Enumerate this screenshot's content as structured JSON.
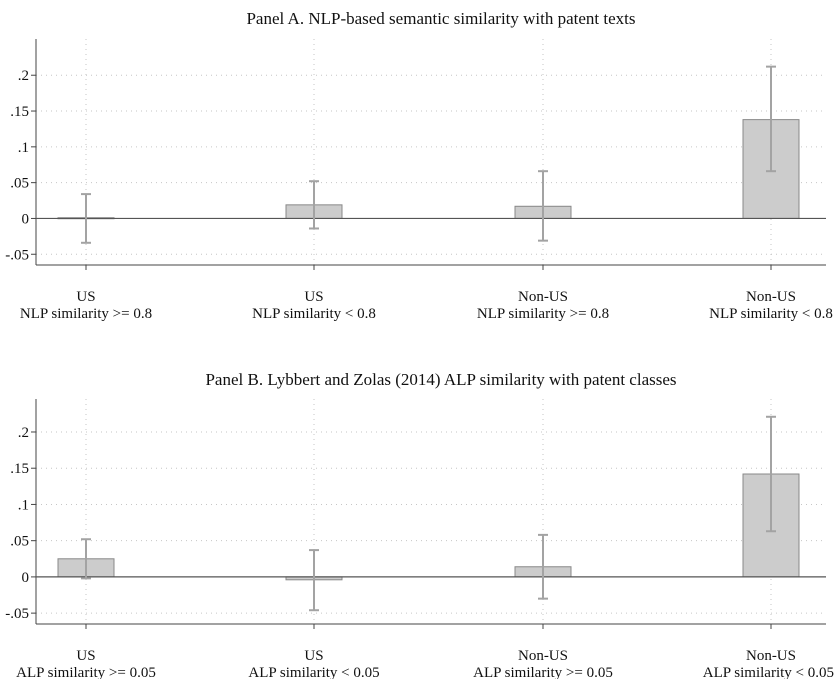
{
  "chart_data": [
    {
      "type": "bar",
      "title": "Panel A. NLP-based semantic similarity with patent texts",
      "categories": [
        [
          "US",
          "NLP similarity >= 0.8"
        ],
        [
          "US",
          "NLP similarity < 0.8"
        ],
        [
          "Non-US",
          "NLP similarity >= 0.8"
        ],
        [
          "Non-US",
          "NLP similarity < 0.8"
        ]
      ],
      "values": [
        0.001,
        0.019,
        0.017,
        0.138
      ],
      "ci_low": [
        -0.034,
        -0.014,
        -0.031,
        0.066
      ],
      "ci_high": [
        0.034,
        0.052,
        0.066,
        0.212
      ],
      "yticks": [
        -0.05,
        0,
        0.05,
        0.1,
        0.15,
        0.2
      ],
      "yticklabels": [
        "-.05",
        "0",
        ".05",
        ".1",
        ".15",
        ".2"
      ],
      "ylim": [
        -0.065,
        0.245
      ],
      "grid": "dotted",
      "legend": "none",
      "colors": {
        "bar_fill": "#cccccc",
        "bar_stroke": "#888888",
        "errorbar": "#a3a3a3",
        "zero_line": "#555555",
        "grid": "#c6c6c6"
      }
    },
    {
      "type": "bar",
      "title": "Panel B. Lybbert and Zolas (2014) ALP similarity with patent classes",
      "categories": [
        [
          "US",
          "ALP similarity >= 0.05"
        ],
        [
          "US",
          "ALP similarity < 0.05"
        ],
        [
          "Non-US",
          "ALP similarity >= 0.05"
        ],
        [
          "Non-US",
          "ALP similarity < 0.05"
        ]
      ],
      "values": [
        0.025,
        -0.004,
        0.014,
        0.142
      ],
      "ci_low": [
        -0.002,
        -0.046,
        -0.03,
        0.063
      ],
      "ci_high": [
        0.052,
        0.037,
        0.058,
        0.221
      ],
      "yticks": [
        -0.05,
        0,
        0.05,
        0.1,
        0.15,
        0.2
      ],
      "yticklabels": [
        "-.05",
        "0",
        ".05",
        ".1",
        ".15",
        ".2"
      ],
      "ylim": [
        -0.065,
        0.24
      ],
      "grid": "dotted",
      "legend": "none",
      "colors": {
        "bar_fill": "#cccccc",
        "bar_stroke": "#888888",
        "errorbar": "#a3a3a3",
        "zero_line": "#555555",
        "grid": "#c6c6c6"
      }
    }
  ]
}
